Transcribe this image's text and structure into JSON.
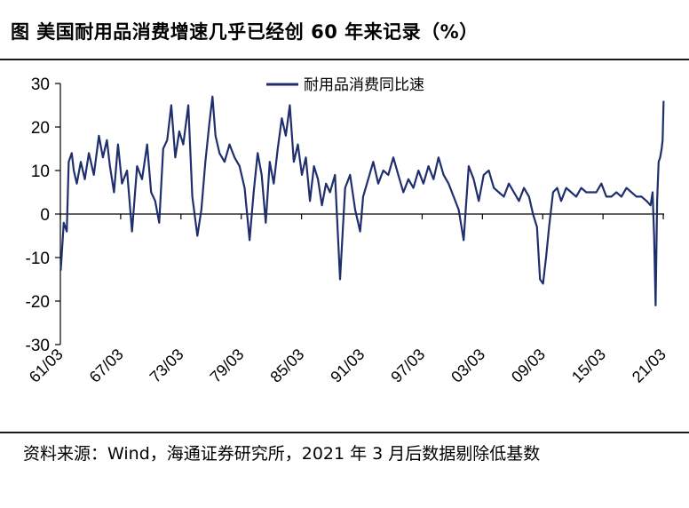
{
  "title": "图 美国耐用品消费增速几乎已经创 60 年来记录（%）",
  "source_note": "资料来源：Wind，海通证券研究所，2021 年 3 月后数据剔除低基数",
  "chart_data": {
    "type": "line",
    "title": "美国耐用品消费增速几乎已经创 60 年来记录（%）",
    "xlabel": "",
    "ylabel": "%",
    "x_range": [
      1961.167,
      2021.25
    ],
    "ylim": [
      -30,
      30
    ],
    "yticks": [
      30,
      20,
      10,
      0,
      -10,
      -20,
      -30
    ],
    "xtick_labels": [
      "61/03",
      "67/03",
      "73/03",
      "79/03",
      "85/03",
      "91/03",
      "97/03",
      "03/03",
      "09/03",
      "15/03",
      "21/03"
    ],
    "xtick_years": [
      1961.167,
      1967.167,
      1973.167,
      1979.167,
      1985.167,
      1991.167,
      1997.167,
      2003.167,
      2009.167,
      2015.167,
      2021.167
    ],
    "legend_position": "top-center",
    "color": "#1f2f6e",
    "series": [
      {
        "name": "耐用品消费同比速",
        "x": [
          1961.2,
          1961.5,
          1961.8,
          1962.0,
          1962.3,
          1962.5,
          1962.8,
          1963.2,
          1963.6,
          1964.0,
          1964.5,
          1965.0,
          1965.4,
          1965.8,
          1966.1,
          1966.5,
          1966.9,
          1967.3,
          1967.8,
          1968.3,
          1968.8,
          1969.3,
          1969.8,
          1970.2,
          1970.6,
          1971.0,
          1971.4,
          1971.8,
          1972.2,
          1972.6,
          1973.0,
          1973.4,
          1973.9,
          1974.3,
          1974.8,
          1975.2,
          1975.6,
          1976.0,
          1976.3,
          1976.6,
          1977.0,
          1977.5,
          1978.0,
          1978.5,
          1979.0,
          1979.5,
          1980.0,
          1980.4,
          1980.8,
          1981.2,
          1981.6,
          1982.0,
          1982.4,
          1982.8,
          1983.2,
          1983.6,
          1984.0,
          1984.4,
          1984.8,
          1985.2,
          1985.6,
          1986.0,
          1986.4,
          1986.8,
          1987.2,
          1987.6,
          1988.0,
          1988.5,
          1989.0,
          1989.5,
          1990.0,
          1990.5,
          1991.0,
          1991.3,
          1991.8,
          1992.3,
          1992.8,
          1993.3,
          1993.8,
          1994.3,
          1994.8,
          1995.3,
          1995.8,
          1996.3,
          1996.8,
          1997.3,
          1997.8,
          1998.3,
          1998.8,
          1999.3,
          1999.8,
          2000.3,
          2000.8,
          2001.3,
          2001.8,
          2002.3,
          2002.8,
          2003.3,
          2003.8,
          2004.3,
          2004.8,
          2005.3,
          2005.8,
          2006.3,
          2006.8,
          2007.3,
          2007.8,
          2008.2,
          2008.6,
          2008.9,
          2009.2,
          2009.5,
          2009.8,
          2010.2,
          2010.6,
          2011.0,
          2011.5,
          2012.0,
          2012.5,
          2013.0,
          2013.5,
          2014.0,
          2014.5,
          2015.0,
          2015.5,
          2016.0,
          2016.5,
          2017.0,
          2017.5,
          2018.0,
          2018.5,
          2019.0,
          2019.5,
          2019.9,
          2020.1,
          2020.25,
          2020.4,
          2020.55,
          2020.7,
          2020.85,
          2021.0,
          2021.1,
          2021.2
        ],
        "values": [
          -13,
          -2,
          -4,
          12,
          14,
          10,
          7,
          12,
          8,
          14,
          9,
          18,
          13,
          17,
          11,
          5,
          16,
          7,
          10,
          -4,
          11,
          8,
          16,
          5,
          3,
          -2,
          15,
          17,
          25,
          13,
          19,
          16,
          25,
          4,
          -5,
          1,
          12,
          21,
          27,
          18,
          14,
          12,
          16,
          13,
          11,
          6,
          -6,
          5,
          14,
          9,
          -2,
          12,
          7,
          15,
          22,
          18,
          25,
          12,
          16,
          9,
          13,
          3,
          11,
          8,
          2,
          7,
          5,
          9,
          -15,
          6,
          9,
          1,
          -4,
          4,
          8,
          12,
          7,
          10,
          9,
          13,
          9,
          5,
          8,
          6,
          10,
          7,
          11,
          8,
          13,
          9,
          7,
          4,
          1,
          -6,
          11,
          8,
          3,
          9,
          10,
          6,
          5,
          4,
          7,
          5,
          3,
          6,
          4,
          0,
          -3,
          -15,
          -16,
          -10,
          -3,
          5,
          6,
          3,
          6,
          5,
          4,
          6,
          5,
          5,
          5,
          7,
          4,
          4,
          5,
          4,
          6,
          5,
          4,
          4,
          3,
          2,
          5,
          -5,
          -21,
          3,
          12,
          13,
          15,
          17,
          26
        ]
      }
    ]
  }
}
